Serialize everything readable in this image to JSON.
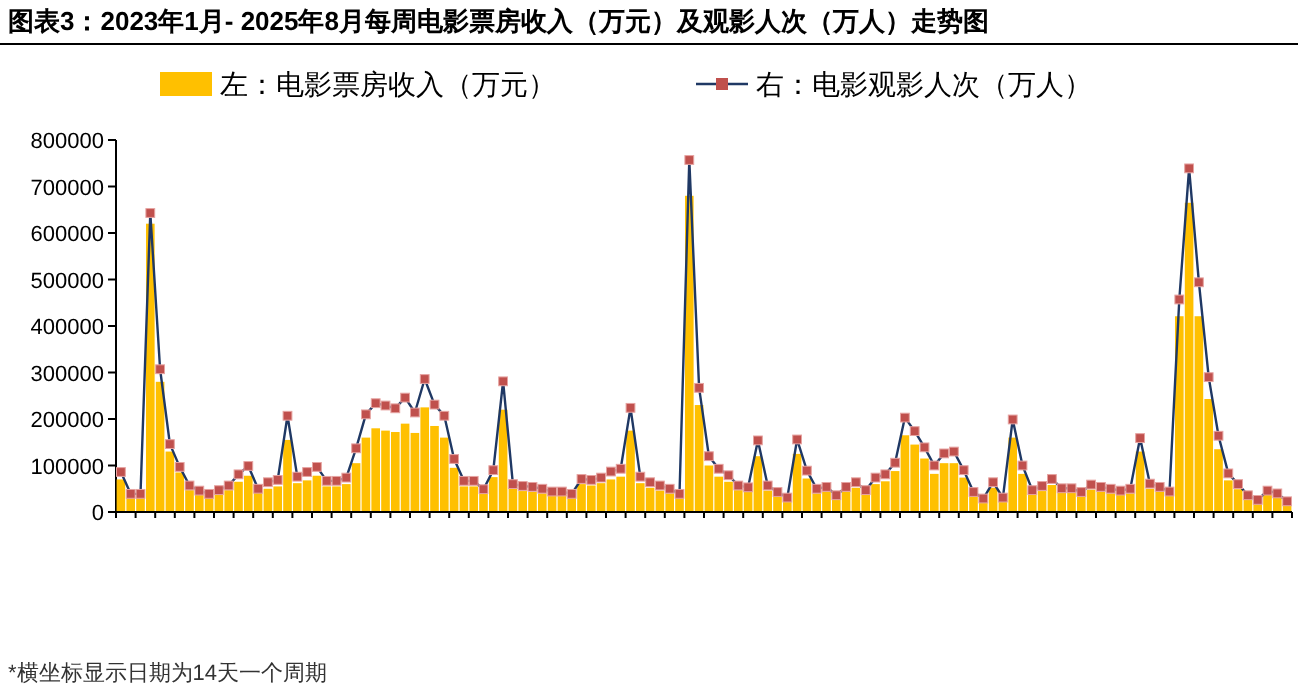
{
  "chart_data": {
    "type": "bar",
    "title": "图表3：2023年1月- 2025年8月每周电影票房收入（万元）及观影人次（万人）走势图",
    "categories": [
      null,
      null,
      null,
      null,
      null,
      null,
      null,
      null,
      null,
      null,
      null,
      null,
      null,
      null,
      null,
      null,
      null,
      null,
      null,
      null,
      null,
      null,
      null,
      null,
      null,
      null,
      null,
      null,
      null,
      null,
      null,
      null,
      null,
      null,
      null,
      null,
      null,
      null,
      null,
      null,
      null,
      null,
      null,
      null,
      null,
      null,
      null,
      null,
      null,
      null,
      null,
      null,
      null,
      null,
      null,
      null,
      null,
      null,
      null,
      null,
      null,
      null,
      null,
      null,
      null,
      null,
      null,
      null,
      null,
      null,
      null,
      null,
      null,
      null,
      null,
      null,
      null,
      null,
      null,
      null,
      null,
      null,
      null,
      null,
      null,
      null,
      null,
      null,
      null,
      null,
      null,
      null,
      null,
      null,
      null,
      null,
      null,
      null,
      null,
      null,
      null,
      null,
      null,
      null,
      null,
      null,
      null,
      null,
      null,
      null,
      null,
      null,
      null,
      null,
      null,
      null,
      null,
      null,
      null,
      null
    ],
    "series": [
      {
        "name": "左：电影票房收入（万元）",
        "color": "#ffc000",
        "values": [
          70000,
          30000,
          30000,
          620000,
          280000,
          130000,
          85000,
          47000,
          37000,
          32000,
          40000,
          47000,
          65000,
          78000,
          42000,
          50000,
          55000,
          155000,
          62000,
          68000,
          78000,
          55000,
          55000,
          60000,
          105000,
          160000,
          180000,
          175000,
          172000,
          190000,
          170000,
          225000,
          185000,
          160000,
          95000,
          55000,
          55000,
          40000,
          75000,
          220000,
          50000,
          45000,
          43000,
          40000,
          36000,
          36000,
          32000,
          60000,
          57000,
          62000,
          70000,
          76000,
          175000,
          62000,
          52000,
          46000,
          40000,
          32000,
          680000,
          230000,
          100000,
          76000,
          65000,
          47000,
          43000,
          120000,
          46000,
          35000,
          25000,
          125000,
          72000,
          40000,
          44000,
          29000,
          44000,
          52000,
          38000,
          60000,
          66000,
          88000,
          165000,
          145000,
          115000,
          82000,
          105000,
          105000,
          74000,
          35000,
          23000,
          52000,
          25000,
          160000,
          82000,
          38000,
          45000,
          58000,
          42000,
          42000,
          35000,
          48000,
          44000,
          40000,
          37000,
          40000,
          130000,
          50000,
          44000,
          36000,
          421000,
          665000,
          421000,
          243000,
          135000,
          68000,
          49000,
          29000,
          21000,
          38000,
          32000,
          19000
        ]
      },
      {
        "type": "line",
        "name": "右：电影观影人次（万人）",
        "color": "#c0504d",
        "marker": "square",
        "values": [
          86000,
          39000,
          39000,
          643000,
          307000,
          146000,
          97000,
          57000,
          46000,
          39000,
          47000,
          57000,
          81000,
          99000,
          50000,
          64000,
          69000,
          207000,
          76000,
          86000,
          97000,
          67000,
          67000,
          74000,
          137000,
          210000,
          234000,
          229000,
          223000,
          246000,
          214000,
          286000,
          231000,
          207000,
          114000,
          67000,
          67000,
          49000,
          90000,
          281000,
          60000,
          56000,
          54000,
          50000,
          44000,
          44000,
          39000,
          71000,
          69000,
          74000,
          87000,
          93000,
          224000,
          76000,
          64000,
          57000,
          50000,
          39000,
          757000,
          267000,
          120000,
          93000,
          79000,
          57000,
          53000,
          154000,
          57000,
          43000,
          31000,
          156000,
          89000,
          50000,
          54000,
          36000,
          54000,
          64000,
          47000,
          74000,
          81000,
          106000,
          203000,
          174000,
          139000,
          100000,
          126000,
          130000,
          90000,
          43000,
          29000,
          64000,
          31000,
          199000,
          100000,
          47000,
          56000,
          71000,
          51000,
          51000,
          43000,
          59000,
          54000,
          50000,
          46000,
          50000,
          159000,
          61000,
          54000,
          44000,
          457000,
          739000,
          494000,
          290000,
          164000,
          83000,
          60000,
          36000,
          26000,
          46000,
          40000,
          23000
        ]
      }
    ],
    "ylim": [
      0,
      800000
    ],
    "yticks": [
      0,
      100000,
      200000,
      300000,
      400000,
      500000,
      600000,
      700000,
      800000
    ],
    "tick_labels": "y",
    "legend": "top",
    "annotations": [
      "*横坐标显示日期为14天一个周期"
    ]
  }
}
